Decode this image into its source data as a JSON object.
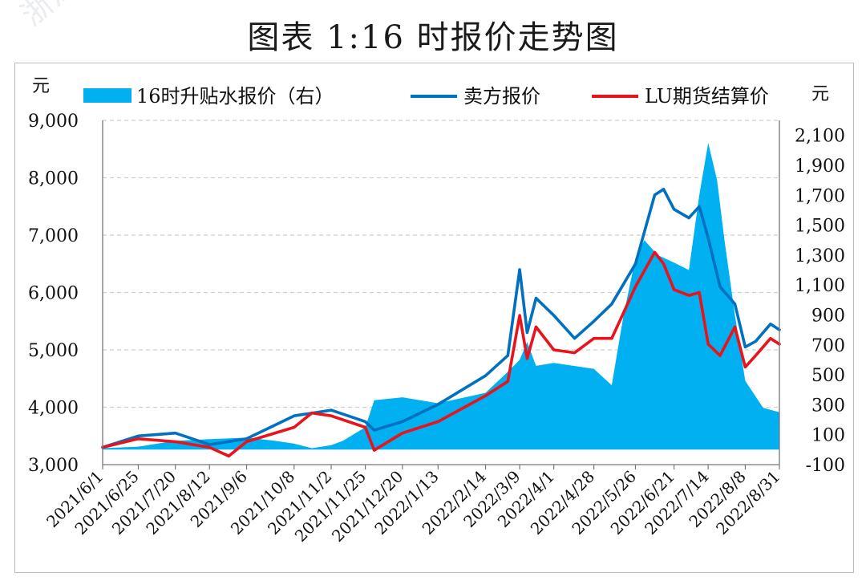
{
  "title": "图表 1:16 时报价走势图",
  "watermark": "浙江国际油气交易中心",
  "chart_data": {
    "type": "line",
    "title": "图表 1:16 时报价走势图",
    "left_axis_unit": "元",
    "right_axis_unit": "元",
    "left_ylim": [
      3000,
      9000
    ],
    "left_ticks": [
      "3,000",
      "4,000",
      "5,000",
      "6,000",
      "7,000",
      "8,000",
      "9,000"
    ],
    "right_ylim": [
      -100,
      2200
    ],
    "right_ticks": [
      "-100",
      "100",
      "300",
      "500",
      "700",
      "900",
      "1,100",
      "1,300",
      "1,500",
      "1,700",
      "1,900",
      "2,100"
    ],
    "x_tick_labels": [
      "2021/6/1",
      "2021/6/25",
      "2021/7/20",
      "2021/8/12",
      "2021/9/6",
      "2021/10/8",
      "2021/11/2",
      "2021/11/25",
      "2021/12/20",
      "2022/1/13",
      "2022/2/14",
      "2022/3/9",
      "2022/4/1",
      "2022/4/28",
      "2022/5/26",
      "2022/6/21",
      "2022/7/14",
      "2022/8/8",
      "2022/8/31"
    ],
    "grid": "horizontal dashed",
    "legend_position": "top",
    "series": [
      {
        "name": "16时升贴水报价（右）",
        "type": "area",
        "axis": "right",
        "color": "#00b0f0",
        "x": [
          "2021/6/1",
          "2021/6/25",
          "2021/7/20",
          "2021/8/12",
          "2021/9/6",
          "2021/9/25",
          "2021/10/8",
          "2021/10/20",
          "2021/11/2",
          "2021/11/10",
          "2021/11/25",
          "2021/12/1",
          "2021/12/20",
          "2022/1/13",
          "2022/2/14",
          "2022/3/1",
          "2022/3/9",
          "2022/3/14",
          "2022/3/20",
          "2022/4/1",
          "2022/4/28",
          "2022/5/10",
          "2022/5/18",
          "2022/5/26",
          "2022/6/1",
          "2022/6/10",
          "2022/6/21",
          "2022/7/1",
          "2022/7/8",
          "2022/7/14",
          "2022/7/20",
          "2022/7/25",
          "2022/8/1",
          "2022/8/8",
          "2022/8/20",
          "2022/8/31"
        ],
        "values": [
          10,
          20,
          60,
          70,
          80,
          60,
          40,
          10,
          30,
          60,
          150,
          330,
          350,
          310,
          380,
          520,
          600,
          720,
          560,
          580,
          540,
          430,
          900,
          1280,
          1400,
          1300,
          1250,
          1200,
          1700,
          2050,
          1800,
          1400,
          900,
          460,
          280,
          250
        ]
      },
      {
        "name": "卖方报价",
        "type": "line",
        "axis": "left",
        "color": "#0070c0",
        "x": [
          "2021/6/1",
          "2021/6/25",
          "2021/7/20",
          "2021/8/12",
          "2021/9/6",
          "2021/10/8",
          "2021/11/2",
          "2021/11/25",
          "2021/12/1",
          "2021/12/20",
          "2022/1/13",
          "2022/2/14",
          "2022/3/1",
          "2022/3/9",
          "2022/3/14",
          "2022/3/20",
          "2022/4/1",
          "2022/4/15",
          "2022/4/28",
          "2022/5/10",
          "2022/5/26",
          "2022/6/8",
          "2022/6/14",
          "2022/6/21",
          "2022/7/1",
          "2022/7/8",
          "2022/7/14",
          "2022/7/22",
          "2022/8/1",
          "2022/8/8",
          "2022/8/15",
          "2022/8/25",
          "2022/8/31"
        ],
        "values": [
          3300,
          3500,
          3550,
          3350,
          3450,
          3850,
          3950,
          3750,
          3600,
          3750,
          4050,
          4550,
          4900,
          6400,
          5300,
          5900,
          5600,
          5200,
          5500,
          5800,
          6500,
          7700,
          7800,
          7450,
          7300,
          7500,
          6950,
          6100,
          5800,
          5050,
          5150,
          5450,
          5350
        ]
      },
      {
        "name": "LU期货结算价",
        "type": "line",
        "axis": "left",
        "color": "#e8131b",
        "x": [
          "2021/6/1",
          "2021/6/25",
          "2021/7/20",
          "2021/8/12",
          "2021/8/25",
          "2021/9/6",
          "2021/10/8",
          "2021/10/20",
          "2021/11/2",
          "2021/11/25",
          "2021/12/1",
          "2021/12/20",
          "2022/1/13",
          "2022/2/14",
          "2022/3/1",
          "2022/3/9",
          "2022/3/14",
          "2022/3/20",
          "2022/4/1",
          "2022/4/15",
          "2022/4/28",
          "2022/5/10",
          "2022/5/26",
          "2022/6/8",
          "2022/6/14",
          "2022/6/21",
          "2022/7/1",
          "2022/7/8",
          "2022/7/14",
          "2022/7/22",
          "2022/8/1",
          "2022/8/8",
          "2022/8/15",
          "2022/8/25",
          "2022/8/31"
        ],
        "values": [
          3300,
          3450,
          3400,
          3300,
          3150,
          3400,
          3650,
          3900,
          3850,
          3650,
          3250,
          3550,
          3750,
          4200,
          4450,
          5600,
          4850,
          5400,
          5000,
          4950,
          5200,
          5200,
          6100,
          6700,
          6500,
          6050,
          5950,
          6000,
          5100,
          4900,
          5400,
          4700,
          4900,
          5200,
          5100
        ]
      }
    ]
  }
}
